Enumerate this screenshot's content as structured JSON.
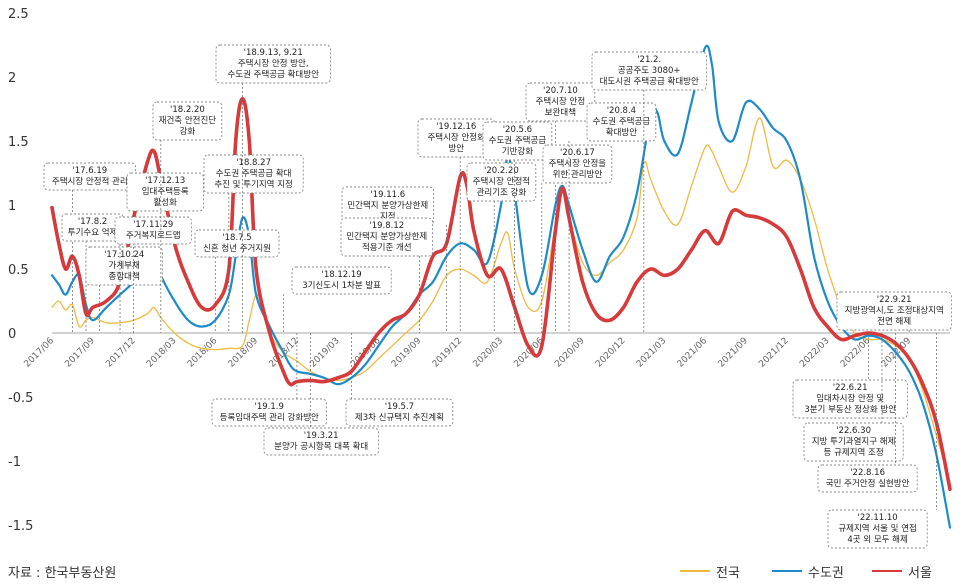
{
  "source": "자료 : 한국부동산원",
  "colors": {
    "nationwide": "#f0b942",
    "capital": "#1e8bc9",
    "seoul": "#d63a3a"
  },
  "chart_data": {
    "type": "line",
    "ylim": [
      -1.5,
      2.5
    ],
    "yticks": [
      "2.5",
      "2",
      "1.5",
      "1",
      "0.5",
      "0",
      "-0.5",
      "-1",
      "-1.5"
    ],
    "x_tick_labels": [
      "2017/06",
      "2017/09",
      "2017/12",
      "2018/03",
      "2018/06",
      "2018/09",
      "2018/12",
      "2019/03",
      "2019/06",
      "2019/09",
      "2019/12",
      "2020/03",
      "2020/06",
      "2020/09",
      "2020/12",
      "2021/03",
      "2021/06",
      "2021/09",
      "2021/12",
      "2022/03",
      "2022/06",
      "2022/09"
    ],
    "x_range": [
      0,
      66
    ],
    "series": [
      {
        "name": "전국",
        "color": "#f0b942",
        "points": [
          [
            0,
            0.2
          ],
          [
            0.5,
            0.25
          ],
          [
            1,
            0.18
          ],
          [
            1.5,
            0.22
          ],
          [
            2,
            0.05
          ],
          [
            2.5,
            0.1
          ],
          [
            3,
            0.12
          ],
          [
            4,
            0.08
          ],
          [
            5,
            0.08
          ],
          [
            6,
            0.1
          ],
          [
            7,
            0.15
          ],
          [
            7.5,
            0.2
          ],
          [
            8,
            0.12
          ],
          [
            9,
            0.0
          ],
          [
            10,
            -0.08
          ],
          [
            11,
            -0.12
          ],
          [
            12,
            -0.13
          ],
          [
            13,
            -0.12
          ],
          [
            14,
            -0.1
          ],
          [
            14.5,
            0.1
          ],
          [
            15,
            0.3
          ],
          [
            15.5,
            0.2
          ],
          [
            16,
            0.0
          ],
          [
            17,
            -0.15
          ],
          [
            18,
            -0.22
          ],
          [
            19,
            -0.3
          ],
          [
            20,
            -0.35
          ],
          [
            21,
            -0.37
          ],
          [
            22,
            -0.35
          ],
          [
            23,
            -0.3
          ],
          [
            24,
            -0.2
          ],
          [
            25,
            -0.1
          ],
          [
            26,
            0.0
          ],
          [
            27,
            0.1
          ],
          [
            28,
            0.25
          ],
          [
            29,
            0.45
          ],
          [
            30,
            0.5
          ],
          [
            31,
            0.45
          ],
          [
            32,
            0.4
          ],
          [
            33,
            0.7
          ],
          [
            33.5,
            0.78
          ],
          [
            34,
            0.5
          ],
          [
            35,
            0.2
          ],
          [
            36,
            0.25
          ],
          [
            37,
            0.85
          ],
          [
            37.5,
            1.1
          ],
          [
            38,
            0.9
          ],
          [
            39,
            0.55
          ],
          [
            40,
            0.45
          ],
          [
            41,
            0.55
          ],
          [
            42,
            0.65
          ],
          [
            43,
            0.9
          ],
          [
            43.5,
            1.33
          ],
          [
            44,
            1.2
          ],
          [
            45,
            0.95
          ],
          [
            46,
            0.85
          ],
          [
            47,
            1.15
          ],
          [
            48,
            1.45
          ],
          [
            48.5,
            1.42
          ],
          [
            49,
            1.3
          ],
          [
            50,
            1.1
          ],
          [
            51,
            1.3
          ],
          [
            52,
            1.68
          ],
          [
            53,
            1.3
          ],
          [
            54,
            1.35
          ],
          [
            55,
            1.2
          ],
          [
            56,
            0.9
          ],
          [
            57,
            0.5
          ],
          [
            58,
            0.2
          ],
          [
            59,
            0.0
          ],
          [
            60,
            -0.05
          ],
          [
            61,
            -0.05
          ],
          [
            62,
            -0.1
          ],
          [
            63,
            -0.2
          ],
          [
            64,
            -0.45
          ],
          [
            65,
            -0.8
          ],
          [
            66,
            -1.17
          ]
        ]
      },
      {
        "name": "수도권",
        "color": "#1e8bc9",
        "points": [
          [
            0,
            0.45
          ],
          [
            0.5,
            0.38
          ],
          [
            1,
            0.3
          ],
          [
            1.5,
            0.4
          ],
          [
            2,
            0.45
          ],
          [
            2.5,
            0.22
          ],
          [
            3,
            0.1
          ],
          [
            4,
            0.2
          ],
          [
            5,
            0.3
          ],
          [
            6,
            0.4
          ],
          [
            7,
            0.55
          ],
          [
            7.5,
            0.6
          ],
          [
            8,
            0.45
          ],
          [
            9,
            0.25
          ],
          [
            10,
            0.1
          ],
          [
            11,
            0.05
          ],
          [
            12,
            0.1
          ],
          [
            13,
            0.3
          ],
          [
            13.5,
            0.6
          ],
          [
            14,
            0.9
          ],
          [
            14.5,
            0.75
          ],
          [
            15,
            0.3
          ],
          [
            16,
            0.05
          ],
          [
            17,
            -0.15
          ],
          [
            17.5,
            -0.25
          ],
          [
            18,
            -0.3
          ],
          [
            19,
            -0.32
          ],
          [
            20,
            -0.35
          ],
          [
            21,
            -0.4
          ],
          [
            22,
            -0.35
          ],
          [
            23,
            -0.25
          ],
          [
            24,
            -0.1
          ],
          [
            25,
            0.05
          ],
          [
            26,
            0.15
          ],
          [
            27,
            0.3
          ],
          [
            28,
            0.4
          ],
          [
            29,
            0.6
          ],
          [
            30,
            0.7
          ],
          [
            31,
            0.65
          ],
          [
            32,
            0.55
          ],
          [
            33,
            1.0
          ],
          [
            33.5,
            1.38
          ],
          [
            34,
            1.1
          ],
          [
            35,
            0.35
          ],
          [
            36,
            0.45
          ],
          [
            37,
            1.0
          ],
          [
            37.5,
            1.15
          ],
          [
            38,
            1.0
          ],
          [
            39,
            0.65
          ],
          [
            40,
            0.4
          ],
          [
            41,
            0.6
          ],
          [
            42,
            0.75
          ],
          [
            43,
            1.1
          ],
          [
            44,
            1.7
          ],
          [
            44.5,
            1.72
          ],
          [
            45,
            1.5
          ],
          [
            46,
            1.4
          ],
          [
            47,
            1.8
          ],
          [
            48,
            2.23
          ],
          [
            48.5,
            2.1
          ],
          [
            49,
            1.65
          ],
          [
            50,
            1.5
          ],
          [
            51,
            1.8
          ],
          [
            52,
            1.75
          ],
          [
            53,
            1.6
          ],
          [
            54,
            1.5
          ],
          [
            55,
            1.2
          ],
          [
            56,
            0.6
          ],
          [
            57,
            0.25
          ],
          [
            58,
            0.05
          ],
          [
            59,
            -0.05
          ],
          [
            60,
            -0.02
          ],
          [
            61,
            -0.05
          ],
          [
            62,
            -0.15
          ],
          [
            63,
            -0.3
          ],
          [
            64,
            -0.55
          ],
          [
            65,
            -0.95
          ],
          [
            66,
            -1.52
          ]
        ]
      },
      {
        "name": "서울",
        "color": "#d63a3a",
        "points": [
          [
            0,
            0.98
          ],
          [
            0.5,
            0.7
          ],
          [
            1,
            0.5
          ],
          [
            1.5,
            0.6
          ],
          [
            2,
            0.45
          ],
          [
            2.5,
            0.15
          ],
          [
            3,
            0.2
          ],
          [
            4,
            0.25
          ],
          [
            5,
            0.4
          ],
          [
            6,
            0.9
          ],
          [
            7,
            1.33
          ],
          [
            7.5,
            1.42
          ],
          [
            8,
            1.2
          ],
          [
            9,
            0.7
          ],
          [
            10,
            0.4
          ],
          [
            11,
            0.2
          ],
          [
            12,
            0.22
          ],
          [
            13,
            0.5
          ],
          [
            13.5,
            1.5
          ],
          [
            14,
            1.83
          ],
          [
            14.5,
            1.5
          ],
          [
            15,
            0.5
          ],
          [
            16,
            0.0
          ],
          [
            17,
            -0.3
          ],
          [
            17.5,
            -0.4
          ],
          [
            18,
            -0.38
          ],
          [
            19,
            -0.37
          ],
          [
            20,
            -0.38
          ],
          [
            21,
            -0.35
          ],
          [
            22,
            -0.3
          ],
          [
            23,
            -0.15
          ],
          [
            24,
            0.0
          ],
          [
            25,
            0.1
          ],
          [
            26,
            0.15
          ],
          [
            27,
            0.3
          ],
          [
            28,
            0.6
          ],
          [
            29,
            0.7
          ],
          [
            30,
            1.22
          ],
          [
            30.5,
            1.15
          ],
          [
            31,
            0.8
          ],
          [
            32,
            0.45
          ],
          [
            33,
            0.5
          ],
          [
            34,
            0.2
          ],
          [
            35,
            -0.1
          ],
          [
            36,
            -0.1
          ],
          [
            37,
            0.8
          ],
          [
            37.5,
            1.13
          ],
          [
            38,
            0.9
          ],
          [
            39,
            0.4
          ],
          [
            40,
            0.15
          ],
          [
            41,
            0.1
          ],
          [
            42,
            0.2
          ],
          [
            43,
            0.4
          ],
          [
            44,
            0.5
          ],
          [
            45,
            0.45
          ],
          [
            46,
            0.5
          ],
          [
            47,
            0.65
          ],
          [
            48,
            0.8
          ],
          [
            49,
            0.7
          ],
          [
            50,
            0.95
          ],
          [
            51,
            0.92
          ],
          [
            52,
            0.9
          ],
          [
            53,
            0.85
          ],
          [
            54,
            0.75
          ],
          [
            55,
            0.5
          ],
          [
            56,
            0.2
          ],
          [
            57,
            0.05
          ],
          [
            58,
            -0.05
          ],
          [
            59,
            -0.02
          ],
          [
            60,
            0.0
          ],
          [
            61,
            -0.02
          ],
          [
            62,
            -0.08
          ],
          [
            63,
            -0.2
          ],
          [
            64,
            -0.4
          ],
          [
            65,
            -0.7
          ],
          [
            66,
            -1.22
          ]
        ]
      }
    ],
    "annotations": [
      {
        "text": [
          "'17.6.19",
          "주택시장 안정적 관리"
        ],
        "x": 1.5
      },
      {
        "text": [
          "'17.8.2",
          "투기수요 억제"
        ],
        "x": 2.5
      },
      {
        "text": [
          "'17.10.24",
          "가계부채",
          "종합대책"
        ],
        "x": 3.5
      },
      {
        "text": [
          "'17.12.13",
          "임대주택등록",
          "활성화"
        ],
        "x": 6
      },
      {
        "text": [
          "'17.11.29",
          "주거복지로드맵"
        ],
        "x": 5
      },
      {
        "text": [
          "'18.2.20",
          "재건축 안전진단",
          "강화"
        ],
        "x": 8
      },
      {
        "text": [
          "'18.8.27",
          "수도권 주택공급 확대",
          "추진 및 투기지역 지정"
        ],
        "x": 13
      },
      {
        "text": [
          "'18.7.5",
          "신혼 청년 주거지원"
        ],
        "x": 12
      },
      {
        "text": [
          "'18.9.13, 9.21",
          "주택시장 안정 방안,",
          "수도권 주택공급 확대방안"
        ],
        "x": 14
      },
      {
        "text": [
          "'18.12.19",
          "3기신도시 1차분 발표"
        ],
        "x": 17
      },
      {
        "text": [
          "'19.11.6",
          "민간택지 분양가상한제",
          "지정"
        ],
        "x": 29
      },
      {
        "text": [
          "'19.8.12",
          "민간택지 분양가상한제",
          "적용기준 개선"
        ],
        "x": 27
      },
      {
        "text": [
          "'19.12.16",
          "주택시장 안정화",
          "방안"
        ],
        "x": 30
      },
      {
        "text": [
          "'20.2.20",
          "주택시장 안정적",
          "관리기조 강화"
        ],
        "x": 32.5
      },
      {
        "text": [
          "'20.5.6",
          "수도권 주택공급",
          "기반강화"
        ],
        "x": 34
      },
      {
        "text": [
          "'20.7.10",
          "주택시장 안정",
          "보완대책"
        ],
        "x": 37
      },
      {
        "text": [
          "'20.6.17",
          "주택시장 안정을",
          "위한 관리방안"
        ],
        "x": 36
      },
      {
        "text": [
          "'20.8.4",
          "수도권 주택공급",
          "확대방안"
        ],
        "x": 38
      },
      {
        "text": [
          "'21.2.",
          "공공주도 3080+",
          "대도시권 주택공급 확대방안"
        ],
        "x": 43.5
      },
      {
        "text": [
          "'19.1.9",
          "등록임대주택 관리 강화방안"
        ],
        "x": 18
      },
      {
        "text": [
          "'19.3.21",
          "분양가 공시항목 대폭 확대"
        ],
        "x": 19
      },
      {
        "text": [
          "'19.5.7",
          "제3차 신규택지 추진계획"
        ],
        "x": 22
      },
      {
        "text": [
          "'22.9.21",
          "지방광역시,도 조정대상지역",
          "전면 해제"
        ],
        "x": 63
      },
      {
        "text": [
          "'22.6.21",
          "임대차시장 안정 및",
          "3분기 부동산 정상화 방안"
        ],
        "x": 60
      },
      {
        "text": [
          "'22.6.30",
          "지방 투기과열지구 해제",
          "등 규제지역 조정"
        ],
        "x": 61
      },
      {
        "text": [
          "'22.8.16",
          "국민 주거안정 실현방안"
        ],
        "x": 62
      },
      {
        "text": [
          "'22.11.10",
          "규제지역 서울 및 연접",
          "4곳 외 모두 해제"
        ],
        "x": 65
      }
    ]
  },
  "legend": [
    {
      "label": "전국",
      "color": "#f0b942"
    },
    {
      "label": "수도권",
      "color": "#1e8bc9"
    },
    {
      "label": "서울",
      "color": "#d63a3a"
    }
  ]
}
